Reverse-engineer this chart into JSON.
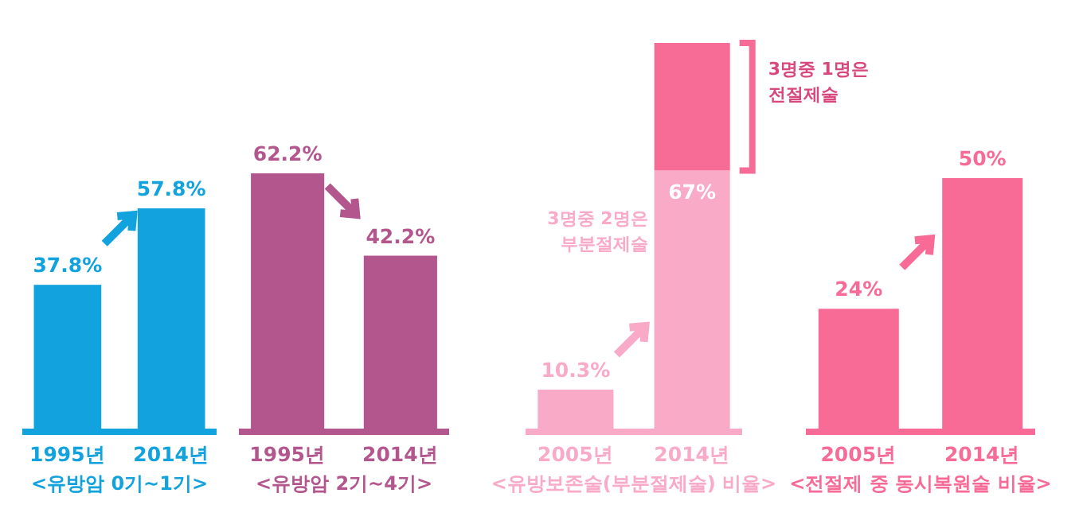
{
  "chart_data": [
    {
      "type": "bar",
      "categories": [
        "1995년",
        "2014년"
      ],
      "xlabel": "<유방암 0기~1기>",
      "series": [
        {
          "color": "#12a2dd",
          "values": [
            37.8,
            57.8
          ],
          "value_labels": [
            "37.8%",
            "57.8%"
          ]
        }
      ]
    },
    {
      "type": "bar",
      "categories": [
        "1995년",
        "2014년"
      ],
      "xlabel": "<유방암 2기~4기>",
      "series": [
        {
          "color": "#b3568e",
          "values": [
            62.2,
            42.2
          ],
          "value_labels": [
            "62.2%",
            "42.2%"
          ]
        }
      ]
    },
    {
      "type": "bar",
      "stacked": true,
      "categories": [
        "2005년",
        "2014년"
      ],
      "xlabel": "<유방보존술(부분절제술) 비율>",
      "series": [
        {
          "color": "#f9aac7",
          "values": [
            10.3,
            67
          ],
          "value_labels": [
            "10.3%",
            "67%"
          ]
        },
        {
          "color": "#f76b97",
          "values": [
            null,
            33
          ],
          "value_labels": [
            null,
            null
          ]
        }
      ],
      "annotations": [
        "3명중 2명은\n부분절제술",
        "3명중 1명은\n전절제술"
      ]
    },
    {
      "type": "bar",
      "categories": [
        "2005년",
        "2014년"
      ],
      "xlabel": "<전절제 중 동시복원술 비율>",
      "series": [
        {
          "color": "#f76b96",
          "values": [
            24,
            50
          ],
          "value_labels": [
            "24%",
            "50%"
          ]
        }
      ]
    }
  ]
}
